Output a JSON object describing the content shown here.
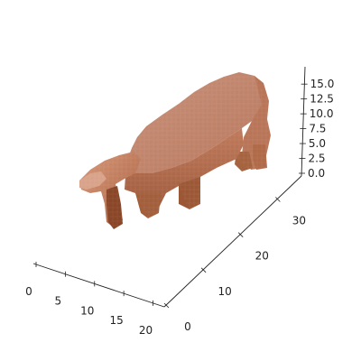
{
  "chart_data": {
    "type": "voxel-3d",
    "title": "",
    "xlabel": "",
    "ylabel": "",
    "zlabel": "",
    "x_ticks": [
      "0",
      "5",
      "10",
      "15",
      "20"
    ],
    "y_ticks": [
      "0",
      "10",
      "20",
      "30"
    ],
    "z_ticks": [
      "0.0",
      "2.5",
      "5.0",
      "7.5",
      "10.0",
      "12.5",
      "15.0"
    ],
    "xlim": [
      0,
      21
    ],
    "ylim": [
      0,
      36
    ],
    "zlim": [
      0,
      17
    ],
    "voxel_color": "#c8866a",
    "shade_dark": "#8a4a30",
    "shade_light": "#e0a890",
    "subject": "animal-shaped voxel object (sheep/pig silhouette)"
  }
}
